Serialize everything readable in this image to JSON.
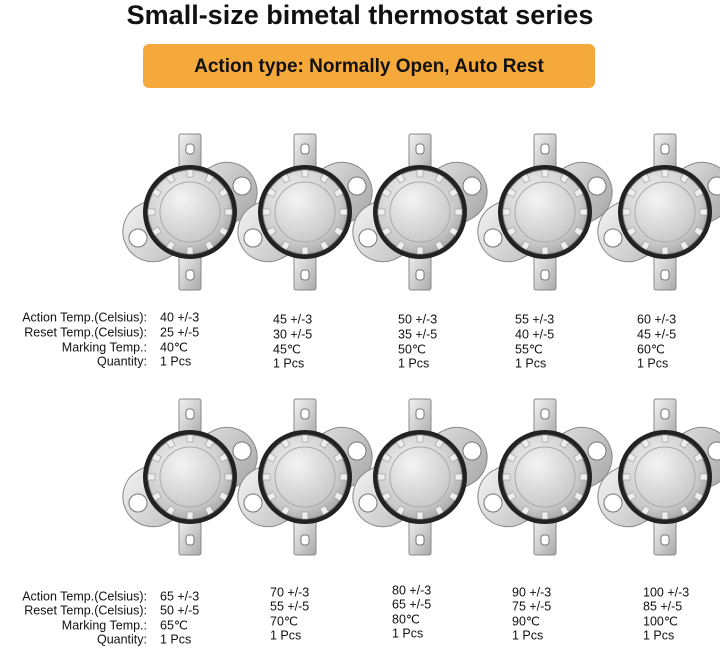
{
  "title": "Small-size bimetal thermostat series",
  "badge": "Action type: Normally Open, Auto Rest",
  "rows": [
    {
      "labels": {
        "action": "Action Temp.(Celsius):",
        "reset": "Reset Temp.(Celsius):",
        "marking": "Marking Temp.:",
        "quantity": "Quantity:"
      },
      "items": [
        {
          "action": "40 +/-3",
          "reset": "25 +/-5",
          "marking": "40℃",
          "quantity": "1 Pcs"
        },
        {
          "action": "45 +/-3",
          "reset": "30 +/-5",
          "marking": "45℃",
          "quantity": "1 Pcs"
        },
        {
          "action": "50 +/-3",
          "reset": "35 +/-5",
          "marking": "50℃",
          "quantity": "1 Pcs"
        },
        {
          "action": "55 +/-3",
          "reset": "40 +/-5",
          "marking": "55℃",
          "quantity": "1 Pcs"
        },
        {
          "action": "60 +/-3",
          "reset": "45 +/-5",
          "marking": "60℃",
          "quantity": "1 Pcs"
        }
      ]
    },
    {
      "labels": {
        "action": "Action Temp.(Celsius):",
        "reset": "Reset Temp.(Celsius):",
        "marking": "Marking Temp.:",
        "quantity": "Quantity:"
      },
      "items": [
        {
          "action": "65 +/-3",
          "reset": "50 +/-5",
          "marking": "65℃",
          "quantity": "1 Pcs"
        },
        {
          "action": "70 +/-3",
          "reset": "55 +/-5",
          "marking": "70℃",
          "quantity": "1 Pcs"
        },
        {
          "action": "80 +/-3",
          "reset": "65 +/-5",
          "marking": "80℃",
          "quantity": "1 Pcs"
        },
        {
          "action": "90 +/-3",
          "reset": "75 +/-5",
          "marking": "90℃",
          "quantity": "1 Pcs"
        },
        {
          "action": "100 +/-3",
          "reset": "85 +/-5",
          "marking": "100℃",
          "quantity": "1 Pcs"
        }
      ]
    }
  ]
}
